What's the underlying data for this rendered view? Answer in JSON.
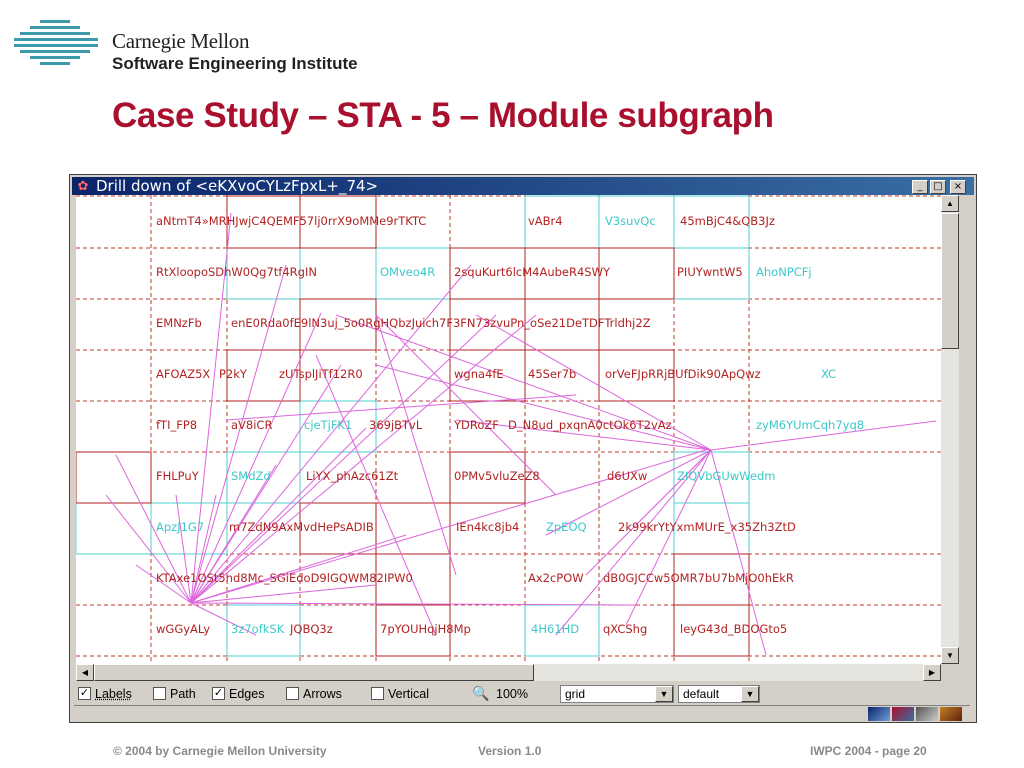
{
  "org": {
    "line1": "Carnegie Mellon",
    "line2": "Software Engineering Institute"
  },
  "slide_title": "Case Study – STA - 5 – Module subgraph",
  "window": {
    "title": "Drill down of <eKXvoCYLzFpxL+_74>",
    "minimize": "_",
    "maximize": "□",
    "close": "×"
  },
  "nodes": [
    {
      "t": "aNtmT4»MRHJwjC4QEMF57lj0rrX9oMMe9rTKTC",
      "c": "red"
    },
    {
      "t": "vABr4",
      "c": "red"
    },
    {
      "t": "V3suvQc",
      "c": "cyan"
    },
    {
      "t": "45mBjC4&QB3Jz",
      "c": "red"
    },
    {
      "t": "RtXloopoSDhW0Qg7tf4RgIN",
      "c": "red"
    },
    {
      "t": "OMveo4R",
      "c": "cyan"
    },
    {
      "t": "2squKurt6lcM4AubeR4SWY",
      "c": "red"
    },
    {
      "t": "PIUYwntW5",
      "c": "red"
    },
    {
      "t": "AhoNPCFj",
      "c": "cyan"
    },
    {
      "t": "EMNzFb",
      "c": "red"
    },
    {
      "t": "enE0Rda0fE9lN3uj_5o0RgHQbzJuich7F3FN73zvuPn_oSe21DeTDFTrldhj2Z",
      "c": "red"
    },
    {
      "t": "AFOAZ5X",
      "c": "red"
    },
    {
      "t": "P2kY",
      "c": "red"
    },
    {
      "t": "zUTsplJiTf12R0",
      "c": "red"
    },
    {
      "t": "wgna4fE",
      "c": "red"
    },
    {
      "t": "45Ser7b",
      "c": "red"
    },
    {
      "t": "orVeFJpRRjBUfDik90ApQwz",
      "c": "red"
    },
    {
      "t": "XC",
      "c": "cyan"
    },
    {
      "t": "fTI_FP8",
      "c": "red"
    },
    {
      "t": "aV8iCR",
      "c": "red"
    },
    {
      "t": "cjeTjFK1",
      "c": "cyan"
    },
    {
      "t": "369jBTvL",
      "c": "red"
    },
    {
      "t": "YDRoZF",
      "c": "red"
    },
    {
      "t": "D_N8ud_pxqnA0ctOk6T2vAz",
      "c": "red"
    },
    {
      "t": "zyM6YUmCqh7yq8",
      "c": "cyan"
    },
    {
      "t": "FHLPuY",
      "c": "red"
    },
    {
      "t": "SMdZd",
      "c": "cyan"
    },
    {
      "t": "LiYX_phAzc61Zt",
      "c": "red"
    },
    {
      "t": "0PMv5vluZeZ8",
      "c": "red"
    },
    {
      "t": "d6UXw",
      "c": "red"
    },
    {
      "t": "ZIQVbGUwWedm",
      "c": "cyan"
    },
    {
      "t": "ApzJ1G7",
      "c": "cyan"
    },
    {
      "t": "m7ZdN9AxMvdHePsADIB",
      "c": "red"
    },
    {
      "t": "IEn4kc8jb4",
      "c": "red"
    },
    {
      "t": "ZpEOQ",
      "c": "cyan"
    },
    {
      "t": "2k99krYtYxmMUrE_x35Zh3ZtD",
      "c": "red"
    },
    {
      "t": "KTAxe1OSt5nd8Mc_SGiEdoD9lGQWM82IPW0",
      "c": "red"
    },
    {
      "t": "Ax2cPOW",
      "c": "red"
    },
    {
      "t": "dB0GJCCw5OMR7bU7bMjO0hEkR",
      "c": "red"
    },
    {
      "t": "wGGyALy",
      "c": "red"
    },
    {
      "t": "3z7ofkSK",
      "c": "cyan"
    },
    {
      "t": "JQBQ3z",
      "c": "red"
    },
    {
      "t": "7pYOUHqjH8Mp",
      "c": "red"
    },
    {
      "t": "4H61HD",
      "c": "cyan"
    },
    {
      "t": "qXCShg",
      "c": "red"
    },
    {
      "t": "leyG43d_BDOGto5",
      "c": "red"
    }
  ],
  "toolbar": {
    "labels": "Labels",
    "labels_checked": true,
    "path": "Path",
    "path_checked": false,
    "edges": "Edges",
    "edges_checked": true,
    "arrows": "Arrows",
    "arrows_checked": false,
    "vertical": "Vertical",
    "vertical_checked": false,
    "zoom": "100%",
    "layout": "grid",
    "style": "default"
  },
  "footer": {
    "copyright": "© 2004 by Carnegie Mellon University",
    "version": "Version 1.0",
    "page": "IWPC 2004 - page 20"
  },
  "colors": {
    "title": "#a8102e",
    "red_node": "#b22222",
    "cyan_node": "#3cc8c8",
    "edge": "#dd66dd"
  }
}
